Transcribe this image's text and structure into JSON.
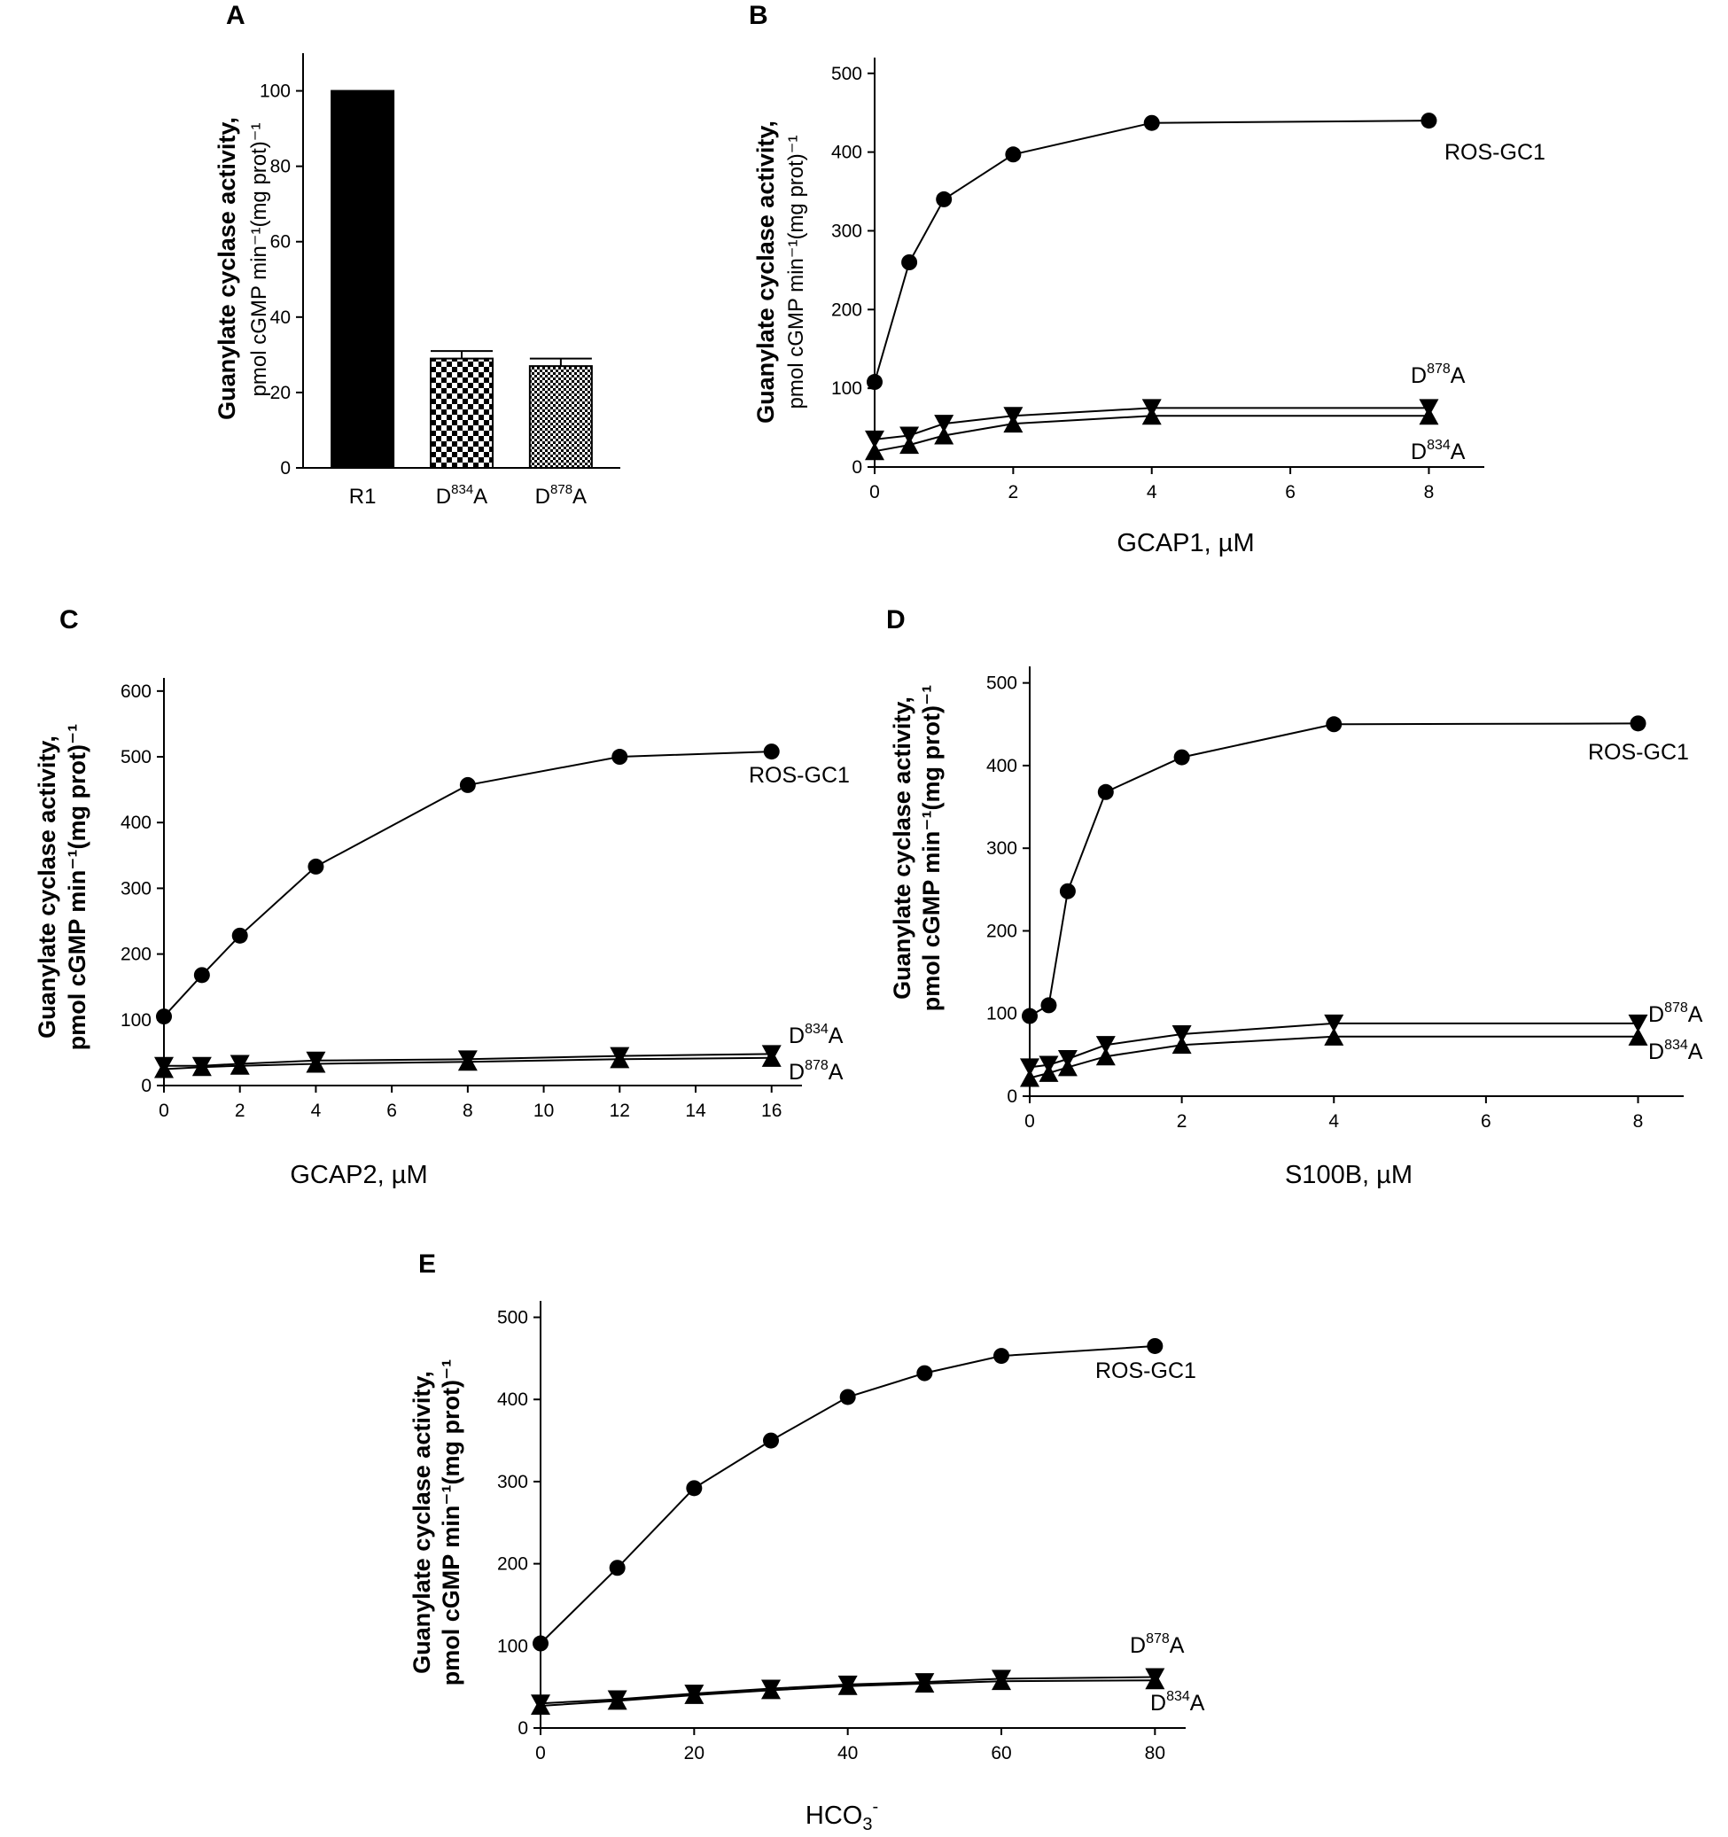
{
  "chart_data": [
    {
      "panel": "A",
      "type": "bar",
      "ylabel": "Guanylate cyclase activity,",
      "ylabel_sub": "pmol cGMP min⁻¹(mg prot)⁻¹",
      "ylim": [
        0,
        110
      ],
      "yticks": [
        0,
        20,
        40,
        60,
        80,
        100
      ],
      "categories": [
        {
          "base": "R1",
          "sup": "",
          "post": ""
        },
        {
          "base": "D",
          "sup": "834",
          "post": "A"
        },
        {
          "base": "D",
          "sup": "878",
          "post": "A"
        }
      ],
      "values": [
        100,
        29,
        27
      ],
      "errors": [
        0,
        2,
        2
      ],
      "fills": [
        "solid",
        "checker",
        "dotted"
      ],
      "color": "#000000"
    },
    {
      "panel": "B",
      "type": "line",
      "xlabel": "GCAP1, µM",
      "ylabel": "Guanylate cyclase activity,",
      "ylabel_sub": "pmol cGMP min⁻¹(mg prot)⁻¹",
      "xlim": [
        0,
        8.8
      ],
      "ylim": [
        0,
        520
      ],
      "xticks": [
        0,
        2,
        4,
        6,
        8
      ],
      "yticks": [
        0,
        100,
        200,
        300,
        400,
        500
      ],
      "x": [
        0,
        0.5,
        1,
        2,
        4,
        8
      ],
      "series": [
        {
          "base": "ROS-GC1",
          "sup": "",
          "post": "",
          "marker": "circle",
          "values": [
            108,
            260,
            340,
            397,
            437,
            440
          ]
        },
        {
          "base": "D",
          "sup": "878",
          "post": "A",
          "marker": "tri-down",
          "values": [
            35,
            40,
            55,
            65,
            75,
            75
          ]
        },
        {
          "base": "D",
          "sup": "834",
          "post": "A",
          "marker": "tri-up",
          "values": [
            20,
            28,
            40,
            55,
            65,
            65
          ]
        }
      ]
    },
    {
      "panel": "C",
      "type": "line",
      "xlabel": "GCAP2, µM",
      "ylabel": "Guanylate cyclase activity,",
      "ylabel_sub": "pmol cGMP min⁻¹(mg prot)⁻¹",
      "xlim": [
        0,
        16.8
      ],
      "ylim": [
        0,
        620
      ],
      "xticks": [
        0,
        2,
        4,
        6,
        8,
        10,
        12,
        14,
        16
      ],
      "yticks": [
        0,
        100,
        200,
        300,
        400,
        500,
        600
      ],
      "x": [
        0,
        1,
        2,
        4,
        8,
        12,
        16
      ],
      "series": [
        {
          "base": "ROS-GC1",
          "sup": "",
          "post": "",
          "marker": "circle",
          "values": [
            105,
            168,
            228,
            333,
            457,
            500,
            508
          ]
        },
        {
          "base": "D",
          "sup": "834",
          "post": "A",
          "marker": "tri-down",
          "values": [
            30,
            30,
            33,
            38,
            40,
            45,
            48
          ]
        },
        {
          "base": "D",
          "sup": "878",
          "post": "A",
          "marker": "tri-up",
          "values": [
            25,
            28,
            30,
            33,
            36,
            40,
            42
          ]
        }
      ]
    },
    {
      "panel": "D",
      "type": "line",
      "xlabel": "S100B, µM",
      "ylabel": "Guanylate cyclase activity,",
      "ylabel_sub": "pmol cGMP min⁻¹(mg prot)⁻¹",
      "xlim": [
        0,
        8.6
      ],
      "ylim": [
        0,
        520
      ],
      "xticks": [
        0,
        2,
        4,
        6,
        8
      ],
      "yticks": [
        0,
        100,
        200,
        300,
        400,
        500
      ],
      "x": [
        0,
        0.25,
        0.5,
        1,
        2,
        4,
        8
      ],
      "series": [
        {
          "base": "ROS-GC1",
          "sup": "",
          "post": "",
          "marker": "circle",
          "values": [
            97,
            110,
            248,
            368,
            410,
            450,
            451
          ]
        },
        {
          "base": "D",
          "sup": "878",
          "post": "A",
          "marker": "tri-down",
          "values": [
            35,
            38,
            45,
            62,
            75,
            88,
            88
          ]
        },
        {
          "base": "D",
          "sup": "834",
          "post": "A",
          "marker": "tri-up",
          "values": [
            22,
            28,
            35,
            48,
            62,
            72,
            72
          ]
        }
      ]
    },
    {
      "panel": "E",
      "type": "line",
      "xlabel_base": "HCO",
      "xlabel_sub": "3",
      "xlabel_sup": "-",
      "ylabel": "Guanylate cyclase activity,",
      "ylabel_sub": "pmol cGMP min⁻¹(mg prot)⁻¹",
      "xlim": [
        0,
        84
      ],
      "ylim": [
        0,
        520
      ],
      "xticks": [
        0,
        20,
        40,
        60,
        80
      ],
      "yticks": [
        0,
        100,
        200,
        300,
        400,
        500
      ],
      "x": [
        0,
        10,
        20,
        30,
        40,
        50,
        60,
        80
      ],
      "series": [
        {
          "base": "ROS-GC1",
          "sup": "",
          "post": "",
          "marker": "circle",
          "values": [
            103,
            195,
            292,
            350,
            403,
            432,
            453,
            465
          ]
        },
        {
          "base": "D",
          "sup": "878",
          "post": "A",
          "marker": "tri-down",
          "values": [
            30,
            35,
            42,
            48,
            53,
            56,
            60,
            62
          ]
        },
        {
          "base": "D",
          "sup": "834",
          "post": "A",
          "marker": "tri-up",
          "values": [
            27,
            33,
            40,
            46,
            51,
            54,
            57,
            58
          ]
        }
      ]
    }
  ]
}
